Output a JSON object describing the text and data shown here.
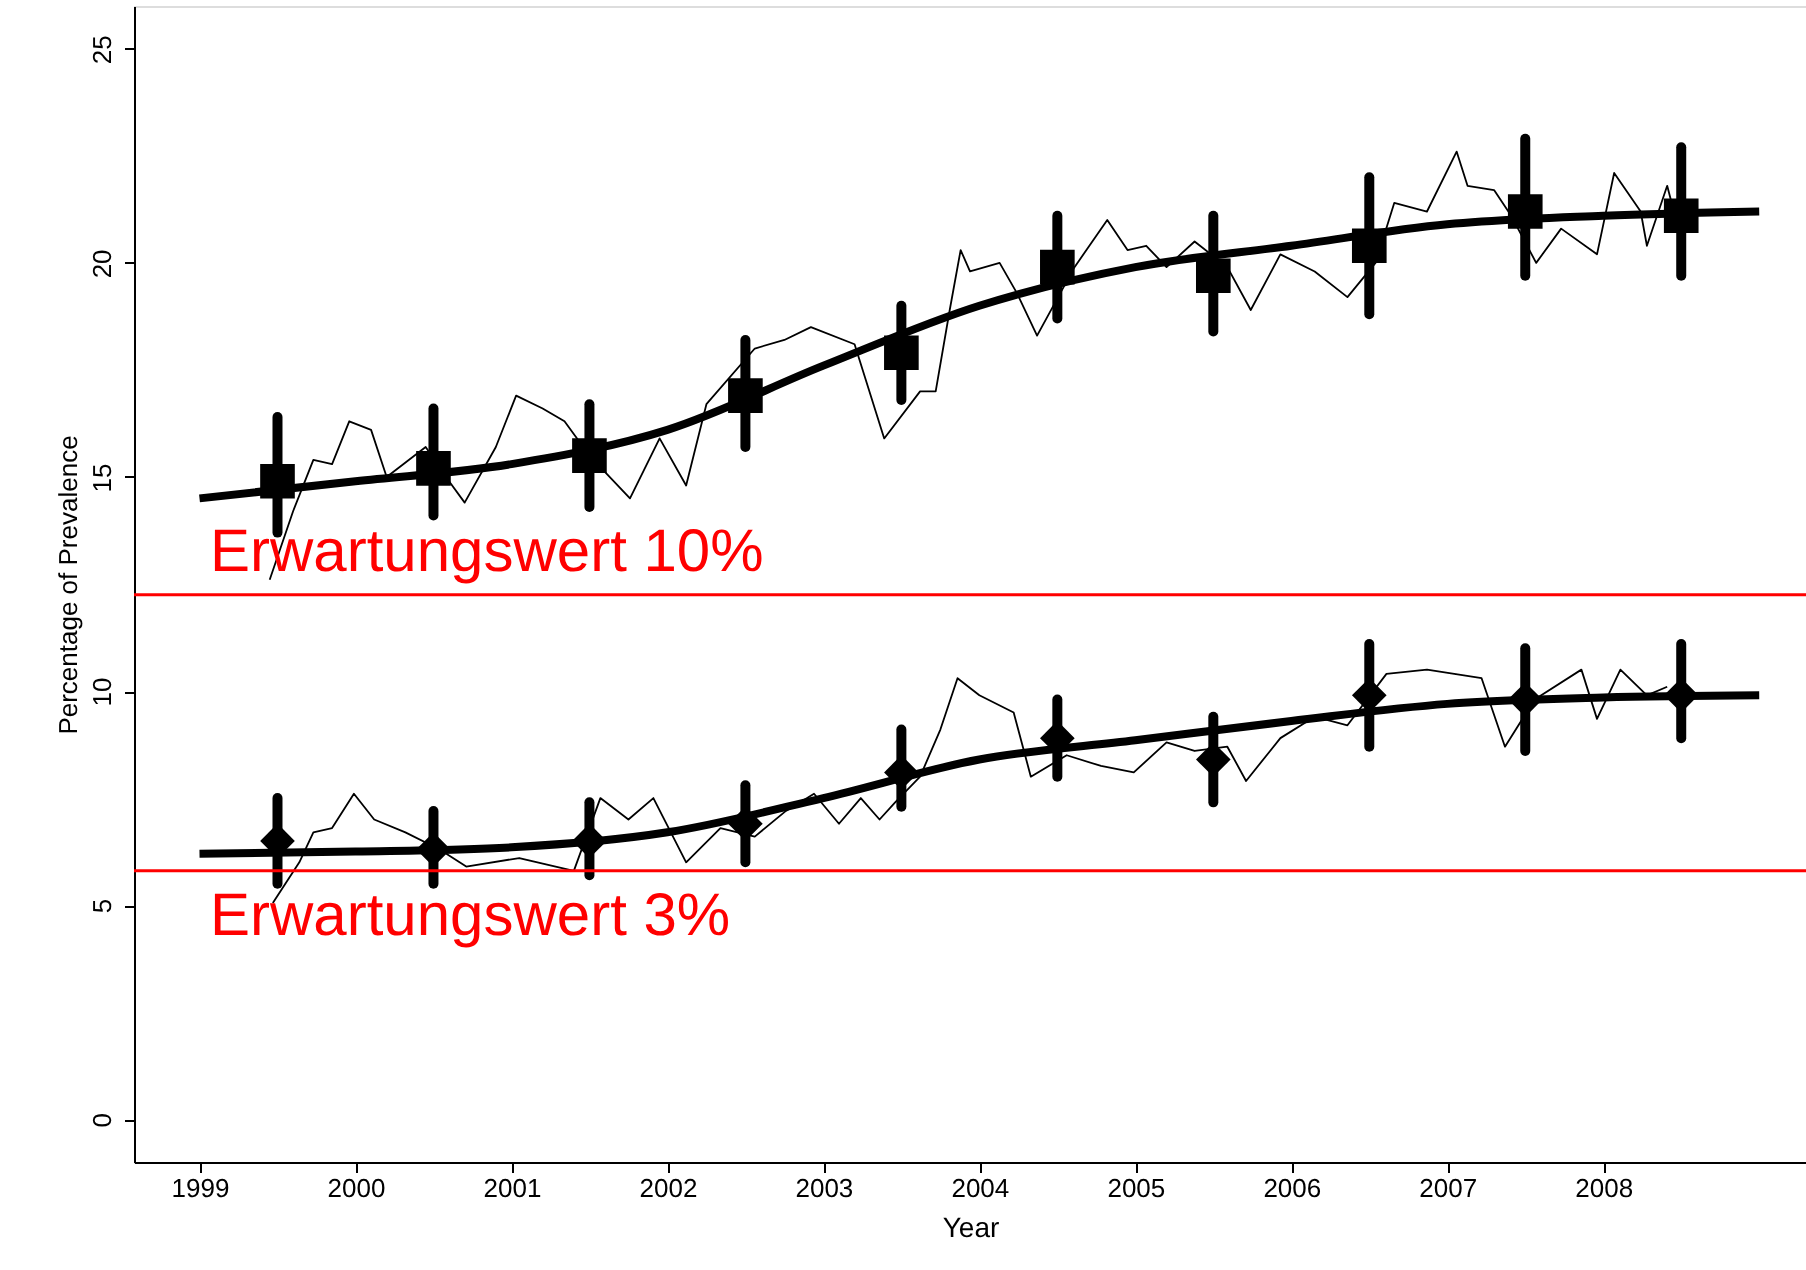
{
  "chart_data": {
    "type": "line",
    "xlabel": "Year",
    "ylabel": "Percentage of Prevalence",
    "xlim": [
      1998.58,
      2009.3
    ],
    "ylim": [
      -1,
      26
    ],
    "xticks": [
      1999,
      2000,
      2001,
      2002,
      2003,
      2004,
      2005,
      2006,
      2007,
      2008
    ],
    "yticks": [
      0,
      5,
      10,
      15,
      20,
      25
    ],
    "grid": false,
    "series": [
      {
        "color": "#000000",
        "x": [
          1999.45,
          1999.6,
          1999.73,
          1999.85,
          1999.96,
          2000.1,
          2000.2,
          2000.45,
          2000.6,
          2000.7,
          2000.9,
          2001.03,
          2001.2,
          2001.34,
          2001.5,
          2001.76,
          2001.95,
          2002.12,
          2002.25,
          2002.56,
          2002.75,
          2002.92,
          2003.2,
          2003.39,
          2003.62,
          2003.72,
          2003.81,
          2003.88,
          2003.94,
          2004.13,
          2004.24,
          2004.37,
          2004.61,
          2004.82,
          2004.95,
          2005.07,
          2005.2,
          2005.38,
          2005.59,
          2005.74,
          2005.93,
          2006.15,
          2006.36,
          2006.54,
          2006.66,
          2006.87,
          2007.06,
          2007.13,
          2007.3,
          2007.41,
          2007.57,
          2007.73,
          2007.96,
          2008.07,
          2008.24,
          2008.28,
          2008.41,
          2008.46
        ],
        "values": [
          12.6,
          14.2,
          15.4,
          15.3,
          16.3,
          16.1,
          15.0,
          15.7,
          14.9,
          14.4,
          15.7,
          16.9,
          16.6,
          16.3,
          15.5,
          14.5,
          15.9,
          14.8,
          16.7,
          18.0,
          18.2,
          18.5,
          18.1,
          15.9,
          17.0,
          17.0,
          18.9,
          20.3,
          19.8,
          20.0,
          19.3,
          18.3,
          19.9,
          21.0,
          20.3,
          20.4,
          19.9,
          20.5,
          19.9,
          18.9,
          20.2,
          19.8,
          19.2,
          20.0,
          21.4,
          21.2,
          22.6,
          21.8,
          21.7,
          21.1,
          20.0,
          20.8,
          20.2,
          22.1,
          21.2,
          20.4,
          21.8,
          21.1
        ]
      },
      {
        "color": "#000000",
        "x": [
          1999.47,
          1999.64,
          1999.73,
          1999.85,
          1999.99,
          2000.12,
          2000.32,
          2000.54,
          2000.71,
          2001.05,
          2001.4,
          2001.57,
          2001.75,
          2001.91,
          2002.12,
          2002.34,
          2002.56,
          2002.76,
          2002.94,
          2003.1,
          2003.24,
          2003.36,
          2003.46,
          2003.62,
          2003.75,
          2003.86,
          2004.0,
          2004.22,
          2004.33,
          2004.56,
          2004.78,
          2004.99,
          2005.2,
          2005.38,
          2005.59,
          2005.71,
          2005.93,
          2006.15,
          2006.36,
          2006.61,
          2006.87,
          2007.22,
          2007.37,
          2007.56,
          2007.86,
          2007.96,
          2008.11,
          2008.28,
          2008.41
        ],
        "values": [
          5.05,
          6.0,
          6.7,
          6.8,
          7.6,
          7.0,
          6.7,
          6.3,
          5.9,
          6.1,
          5.8,
          7.5,
          7.0,
          7.5,
          6.0,
          6.8,
          6.6,
          7.2,
          7.6,
          6.9,
          7.5,
          7.0,
          7.4,
          8.0,
          9.1,
          10.3,
          9.9,
          9.5,
          8.0,
          8.5,
          8.25,
          8.1,
          8.8,
          8.6,
          8.7,
          7.9,
          8.9,
          9.4,
          9.2,
          10.4,
          10.5,
          10.3,
          8.7,
          9.8,
          10.5,
          9.35,
          10.5,
          9.9,
          10.1
        ]
      },
      {
        "type": "line",
        "color": "#000000",
        "x": [
          1999,
          2000,
          2001,
          2002,
          2003,
          2004,
          2005,
          2006,
          2007,
          2008,
          2009
        ],
        "values": [
          14.5,
          14.9,
          15.3,
          16.1,
          17.6,
          19.0,
          19.9,
          20.4,
          20.9,
          21.1,
          21.2
        ]
      },
      {
        "type": "line",
        "color": "#000000",
        "x": [
          1999,
          2000,
          2001,
          2002,
          2003,
          2004,
          2005,
          2006,
          2007,
          2008,
          2009
        ],
        "values": [
          6.2,
          6.25,
          6.35,
          6.7,
          7.5,
          8.4,
          8.85,
          9.3,
          9.7,
          9.85,
          9.9
        ]
      },
      {
        "type": "scatter",
        "color": "#000000",
        "marker": "square",
        "x": [
          1999.5,
          2000.5,
          2001.5,
          2002.5,
          2003.5,
          2004.5,
          2005.5,
          2006.5,
          2007.5,
          2008.5
        ],
        "values": [
          14.9,
          15.2,
          15.5,
          16.9,
          17.9,
          19.9,
          19.7,
          20.4,
          21.2,
          21.1
        ],
        "errors": [
          [
            13.7,
            16.4
          ],
          [
            14.1,
            16.6
          ],
          [
            14.3,
            16.7
          ],
          [
            15.7,
            18.2
          ],
          [
            16.8,
            19.0
          ],
          [
            18.7,
            21.1
          ],
          [
            18.4,
            21.1
          ],
          [
            18.8,
            22.0
          ],
          [
            19.7,
            22.9
          ],
          [
            19.7,
            22.7
          ]
        ]
      },
      {
        "type": "scatter",
        "color": "#000000",
        "marker": "diamond",
        "x": [
          1999.5,
          2000.5,
          2001.5,
          2002.5,
          2003.5,
          2004.5,
          2005.5,
          2006.5,
          2007.5,
          2008.5
        ],
        "values": [
          6.5,
          6.3,
          6.5,
          6.9,
          8.1,
          8.9,
          8.4,
          9.9,
          9.8,
          9.9
        ],
        "errors": [
          [
            5.5,
            7.5
          ],
          [
            5.5,
            7.2
          ],
          [
            5.7,
            7.4
          ],
          [
            6.0,
            7.8
          ],
          [
            7.3,
            9.1
          ],
          [
            8.0,
            9.8
          ],
          [
            7.4,
            9.4
          ],
          [
            8.7,
            11.1
          ],
          [
            8.6,
            11.0
          ],
          [
            8.9,
            11.1
          ]
        ]
      }
    ],
    "ref_lines": [
      {
        "axis": "y",
        "value": 12.25,
        "label": "Erwartungswert 10%",
        "color": "#ff0000"
      },
      {
        "axis": "y",
        "value": 5.8,
        "label": "Erwartungswert 3%",
        "color": "#ff0000"
      }
    ]
  }
}
